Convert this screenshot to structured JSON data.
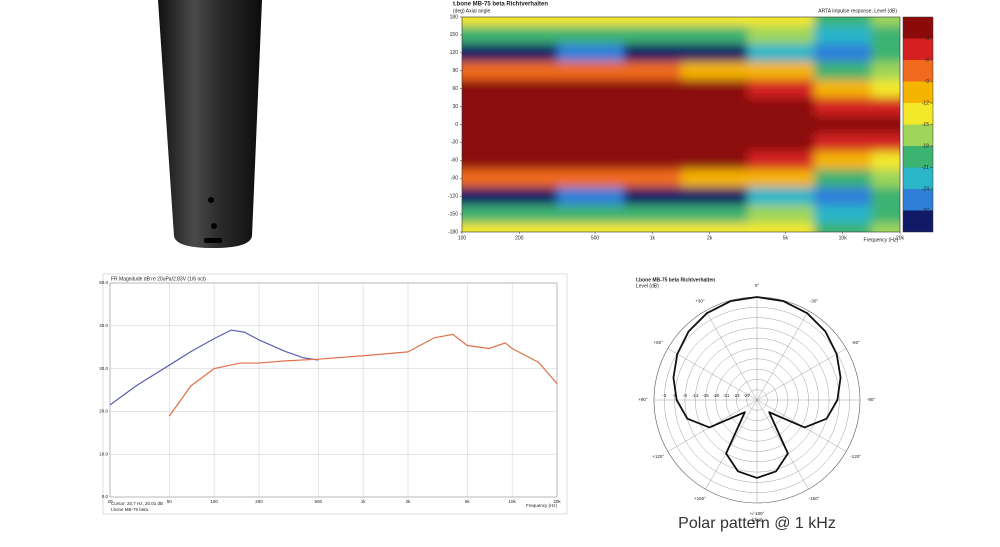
{
  "chart_data": [
    {
      "type": "heatmap",
      "title": "t.bone MB-75 beta Richtverhalten",
      "subtitle": "(deg) Axial angle",
      "legend_title": "ARTA impulse response, Level (dB)",
      "xlabel": "Frequency (Hz)",
      "xscale": "log",
      "xlim": [
        100,
        20000
      ],
      "xticks": [
        100,
        200,
        500,
        {
          "value": 1000,
          "label": "1k"
        },
        {
          "value": 2000,
          "label": "2k"
        },
        {
          "value": 5000,
          "label": "5k"
        },
        {
          "value": 10000,
          "label": "10k"
        },
        {
          "value": 20000,
          "label": "20k"
        }
      ],
      "ylim": [
        -180,
        180
      ],
      "yticks": [
        180,
        150,
        120,
        90,
        60,
        30,
        0,
        -30,
        -60,
        -90,
        -120,
        -150,
        -180
      ],
      "x": [
        100,
        200,
        500,
        1000,
        2000,
        5000,
        10000,
        20000
      ],
      "y": [
        180,
        150,
        120,
        90,
        60,
        30,
        0,
        -30,
        -60,
        -90,
        -120,
        -150,
        -180
      ],
      "z": [
        [
          -12,
          -12,
          -13,
          -13,
          -12,
          -14,
          -20,
          -17
        ],
        [
          -18,
          -18,
          -19,
          -19,
          -18,
          -16,
          -22,
          -19
        ],
        [
          -28,
          -28,
          -26,
          -28,
          -27,
          -21,
          -24,
          -20
        ],
        [
          -8,
          -8,
          -8,
          -8,
          -9,
          -10,
          -18,
          -16
        ],
        [
          -2,
          -2,
          -2,
          -2,
          -2,
          -4,
          -10,
          -12
        ],
        [
          -1,
          -1,
          -1,
          -1,
          -1,
          -1,
          -3,
          -5
        ],
        [
          0,
          0,
          0,
          0,
          0,
          0,
          0,
          0
        ],
        [
          -1,
          -1,
          -1,
          -1,
          -1,
          -1,
          -3,
          -5
        ],
        [
          -2,
          -2,
          -2,
          -2,
          -2,
          -4,
          -10,
          -12
        ],
        [
          -8,
          -8,
          -8,
          -8,
          -9,
          -10,
          -18,
          -16
        ],
        [
          -28,
          -28,
          -26,
          -28,
          -27,
          -21,
          -24,
          -20
        ],
        [
          -18,
          -18,
          -19,
          -19,
          -18,
          -16,
          -22,
          -19
        ],
        [
          -12,
          -12,
          -13,
          -13,
          -12,
          -14,
          -20,
          -17
        ]
      ],
      "zlim": [
        -30,
        0
      ],
      "colors": [
        "#8b0a0a",
        "#d42020",
        "#f06a1e",
        "#f5b400",
        "#f3e82a",
        "#9fd65a",
        "#3cb371",
        "#2bb5c9",
        "#2f7fd9",
        "#101a66"
      ],
      "colorbar_ticks": [
        -3,
        -6,
        -9,
        -12,
        -15,
        -18,
        -21,
        -24,
        -27
      ]
    },
    {
      "type": "line",
      "title": "FR Magnitude dB re 20uPa/2.83V (1/6 oct)",
      "xlabel": "Frequency (Hz)",
      "notes": [
        "Cursor: 20.7 Hz, 20.01 dB",
        "t.bone MB-75 beta"
      ],
      "xscale": "log",
      "xlim": [
        20,
        20000
      ],
      "xticks": [
        20,
        50,
        100,
        200,
        500,
        {
          "value": 1000,
          "label": "1k"
        },
        {
          "value": 2000,
          "label": "2k"
        },
        {
          "value": 5000,
          "label": "5k"
        },
        {
          "value": 10000,
          "label": "10k"
        },
        {
          "value": 20000,
          "label": "20k"
        }
      ],
      "ylim": [
        0,
        50
      ],
      "yticks": [
        {
          "value": 0,
          "label": "0.0"
        },
        {
          "value": 10,
          "label": "10.0"
        },
        {
          "value": 20,
          "label": "20.0"
        },
        {
          "value": 30,
          "label": "30.0"
        },
        {
          "value": 40,
          "label": "40.0"
        },
        {
          "value": 50,
          "label": "50.0"
        }
      ],
      "grid": true,
      "series": [
        {
          "color": "#5a5fb0",
          "x": [
            20,
            30,
            50,
            70,
            100,
            130,
            160,
            200,
            300,
            400,
            500
          ],
          "values": [
            21.5,
            26,
            30.8,
            34,
            37,
            39,
            38.5,
            36.7,
            34,
            32.5,
            32
          ]
        },
        {
          "color": "#e0704a",
          "x": [
            50,
            70,
            100,
            150,
            200,
            300,
            500,
            1000,
            2000,
            3000,
            4000,
            5000,
            7000,
            9000,
            10000,
            15000,
            20000
          ],
          "values": [
            18.9,
            26,
            30,
            31.3,
            31.3,
            31.8,
            32.2,
            33,
            33.9,
            37.2,
            38,
            35.4,
            34.7,
            36,
            34.7,
            31.5,
            26.5
          ]
        }
      ]
    },
    {
      "type": "polar",
      "title": "t.bone MB-75 beta Richtverhalten",
      "subtitle": "Level (dB)",
      "theta_unit": "(deg)",
      "rlim": [
        -30,
        0
      ],
      "rticks": [
        -3,
        -6,
        -9,
        -12,
        -15,
        -18,
        -21,
        -24,
        -27
      ],
      "thetaticks": [
        {
          "value": 0,
          "label": "0°"
        },
        {
          "value": -30,
          "label": "-30°"
        },
        {
          "value": -60,
          "label": "-60°"
        },
        {
          "value": -90,
          "label": "-90°"
        },
        {
          "value": -120,
          "label": "-120°"
        },
        {
          "value": -150,
          "label": "-150°"
        },
        {
          "value": 180,
          "label": "+/-180°"
        },
        {
          "value": 150,
          "label": "+150°"
        },
        {
          "value": 120,
          "label": "+120°"
        },
        {
          "value": 90,
          "label": "+90°"
        },
        {
          "value": 60,
          "label": "+60°"
        },
        {
          "value": 30,
          "label": "+30°"
        }
      ],
      "series": [
        {
          "color": "#111111",
          "theta": [
            0,
            15,
            30,
            45,
            60,
            75,
            90,
            105,
            120,
            135,
            150,
            165,
            180,
            195,
            210,
            225,
            240,
            255,
            270,
            285,
            300,
            315,
            330,
            345
          ],
          "values": [
            0,
            -0.2,
            -0.8,
            -1.8,
            -3.2,
            -4.8,
            -6.6,
            -9,
            -14,
            -25,
            -12,
            -8.5,
            -7.3,
            -8.5,
            -12,
            -25,
            -14,
            -9,
            -6.6,
            -4.8,
            -3.2,
            -1.8,
            -0.8,
            -0.2
          ]
        }
      ]
    }
  ],
  "caption": "Polar pattern @ 1 kHz"
}
